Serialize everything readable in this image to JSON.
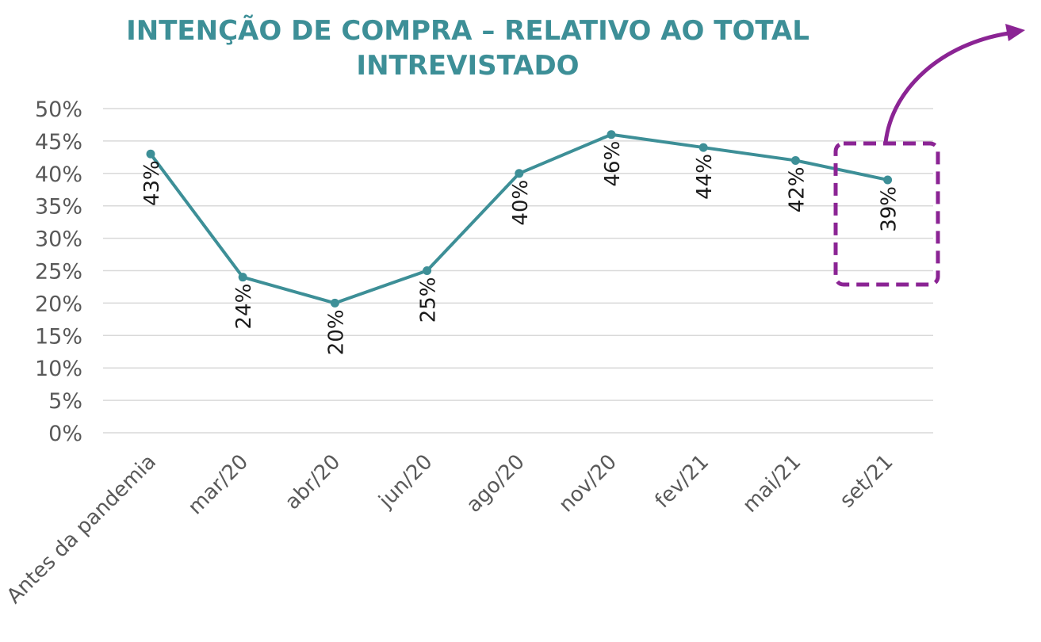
{
  "chart_data": {
    "type": "line",
    "title_line1": "INTENÇÃO DE COMPRA – RELATIVO AO TOTAL",
    "title_line2": "INTREVISTADO",
    "categories": [
      "Antes da pandemia",
      "mar/20",
      "abr/20",
      "jun/20",
      "ago/20",
      "nov/20",
      "fev/21",
      "mai/21",
      "set/21"
    ],
    "values": [
      43,
      24,
      20,
      25,
      40,
      46,
      44,
      42,
      39
    ],
    "data_labels": [
      "43%",
      "24%",
      "20%",
      "25%",
      "40%",
      "46%",
      "44%",
      "42%",
      "39%"
    ],
    "yticks": [
      0,
      5,
      10,
      15,
      20,
      25,
      30,
      35,
      40,
      45,
      50
    ],
    "ytick_labels": [
      "0%",
      "5%",
      "10%",
      "15%",
      "20%",
      "25%",
      "30%",
      "35%",
      "40%",
      "45%",
      "50%"
    ],
    "ylim": [
      0,
      50
    ],
    "grid": true,
    "highlight": {
      "category": "set/21",
      "style": "dashed-box-with-arrow"
    },
    "colors": {
      "line": "#3d8f97",
      "title": "#3d8f97",
      "highlight": "#8b2494",
      "grid": "#d9d9d9",
      "axis_text": "#595959"
    }
  }
}
